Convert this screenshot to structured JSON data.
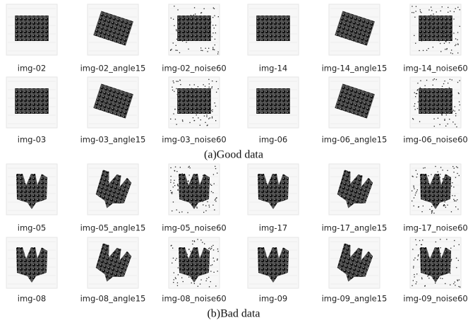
{
  "sections": [
    {
      "caption": "(a)Good data",
      "rows": [
        [
          "img-02",
          "img-02_angle15",
          "img-02_noise60",
          "img-14",
          "img-14_angle15",
          "img-14_noise60"
        ],
        [
          "img-03",
          "img-03_angle15",
          "img-03_noise60",
          "img-06",
          "img-06_angle15",
          "img-06_noise60"
        ]
      ]
    },
    {
      "caption": "(b)Bad data",
      "rows": [
        [
          "img-05",
          "img-05_angle15",
          "img-05_noise60",
          "img-17",
          "img-17_angle15",
          "img-17_noise60"
        ],
        [
          "img-08",
          "img-08_angle15",
          "img-08_noise60",
          "img-09",
          "img-09_angle15",
          "img-09_noise60"
        ]
      ]
    }
  ]
}
